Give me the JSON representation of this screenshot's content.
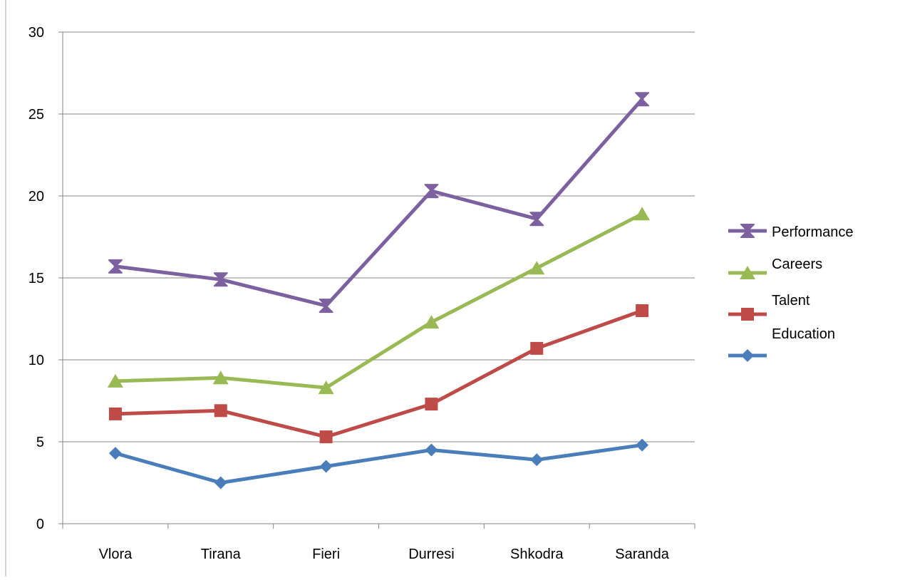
{
  "chart_data": {
    "type": "line",
    "title": "",
    "xlabel": "",
    "ylabel": "",
    "categories": [
      "Vlora",
      "Tirana",
      "Fieri",
      "Durresi",
      "Shkodra",
      "Saranda"
    ],
    "ylim": [
      0,
      30
    ],
    "yticks": [
      0,
      5,
      10,
      15,
      20,
      25,
      30
    ],
    "grid": true,
    "legend_position": "right",
    "series": [
      {
        "name": "Education",
        "color": "#4A7EBB",
        "marker": "diamond",
        "values": [
          4.3,
          2.5,
          3.5,
          4.5,
          3.9,
          4.8
        ]
      },
      {
        "name": "Talent",
        "color": "#BE4B48",
        "marker": "square",
        "values": [
          6.7,
          6.9,
          5.3,
          7.3,
          10.7,
          13.0
        ]
      },
      {
        "name": "Careers",
        "color": "#98B954",
        "marker": "triangle",
        "values": [
          8.7,
          8.9,
          8.3,
          12.3,
          15.6,
          18.9
        ]
      },
      {
        "name": "Performance",
        "color": "#7D60A0",
        "marker": "hourglass",
        "values": [
          15.7,
          14.9,
          13.3,
          20.3,
          18.6,
          25.9
        ]
      }
    ],
    "legend_order": [
      "Performance",
      "Careers",
      "Talent",
      "Education"
    ]
  }
}
